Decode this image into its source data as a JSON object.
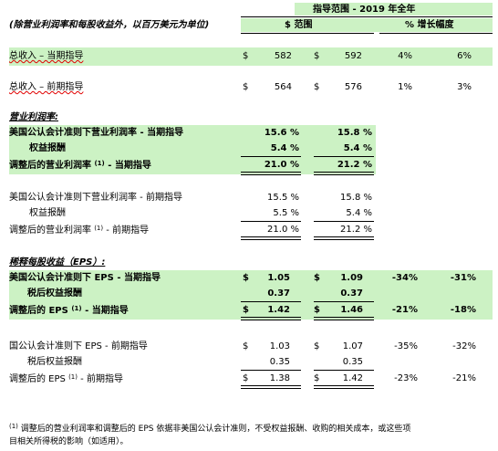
{
  "header": {
    "range_label": "指导范围 - 2019 年全年",
    "note": "(除营业利润率和每股收益外，以百万美元为单位)",
    "col_range": "$ 范围",
    "col_growth": "% 增长幅度"
  },
  "revenue": {
    "current": {
      "label": "总收入 – 当期指导",
      "d1": "$",
      "low": "582",
      "d2": "$",
      "high": "592",
      "g_low": "4%",
      "g_high": "6%"
    },
    "prior": {
      "label": "总收入 – 前期指导",
      "d1": "$",
      "low": "564",
      "d2": "$",
      "high": "576",
      "g_low": "1%",
      "g_high": "3%"
    }
  },
  "op": {
    "title": "营业利润率:",
    "cur_gaap": {
      "label": "美国公认会计准则下营业利润率 - 当期指导",
      "low": "15.6 %",
      "high": "15.8 %"
    },
    "cur_equity": {
      "label": "权益报酬",
      "low": "5.4 %",
      "high": "5.4 %"
    },
    "cur_adj": {
      "label_a": "调整后的营业利润率",
      "sup": "(1)",
      "label_b": "- 当期指导",
      "low": "21.0 %",
      "high": "21.2 %"
    },
    "pri_gaap": {
      "label": "美国公认会计准则下营业利润率 - 前期指导",
      "low": "15.5 %",
      "high": "15.8 %"
    },
    "pri_equity": {
      "label": "权益报酬",
      "low": "5.5 %",
      "high": "5.4 %"
    },
    "pri_adj": {
      "label_a": "调整后的营业利润率",
      "sup": "(1)",
      "label_b": "- 前期指导",
      "low": "21.0 %",
      "high": "21.2 %"
    }
  },
  "eps": {
    "title": "稀释每股收益（EPS）:",
    "cur_gaap": {
      "label": "美国公认会计准则下 EPS - 当期指导",
      "d1": "$",
      "low": "1.05",
      "d2": "$",
      "high": "1.09",
      "g_low": "-34%",
      "g_high": "-31%"
    },
    "cur_equity": {
      "label": "税后权益报酬",
      "low": "0.37",
      "high": "0.37"
    },
    "cur_adj": {
      "label_a": "调整后的 EPS",
      "sup": "(1)",
      "label_b": "- 当期指导",
      "d1": "$",
      "low": "1.42",
      "d2": "$",
      "high": "1.46",
      "g_low": "-21%",
      "g_high": "-18%"
    },
    "pri_gaap": {
      "label": "国公认会计准则下 EPS - 前期指导",
      "d1": "$",
      "low": "1.03",
      "d2": "$",
      "high": "1.07",
      "g_low": "-35%",
      "g_high": "-32%"
    },
    "pri_equity": {
      "label": "税后权益报酬",
      "low": "0.35",
      "high": "0.35"
    },
    "pri_adj": {
      "label_a": "调整后的 EPS",
      "sup": "(1)",
      "label_b": "- 前期指导",
      "d1": "$",
      "low": "1.38",
      "d2": "$",
      "high": "1.42",
      "g_low": "-23%",
      "g_high": "-21%"
    }
  },
  "footnote": {
    "sup": "(1)",
    "line1": "调整后的营业利润率和调整后的 EPS 依据非美国公认会计准则，不受权益报酬、收购的相关成本，或这些项",
    "line2": "目相关所得税的影响（如适用）。"
  },
  "chart_data": {
    "type": "table",
    "title": "指导范围 - 2019 年全年",
    "columns": [
      "",
      "$ 范围 (低)",
      "$ 范围 (高)",
      "% 增长幅度 (低)",
      "% 增长幅度 (高)"
    ],
    "rows": [
      [
        "总收入 – 当期指导",
        "$ 582",
        "$ 592",
        "4%",
        "6%"
      ],
      [
        "总收入 – 前期指导",
        "$ 564",
        "$ 576",
        "1%",
        "3%"
      ],
      [
        "美国公认会计准则下营业利润率 - 当期指导",
        "15.6 %",
        "15.8 %",
        "",
        ""
      ],
      [
        "权益报酬",
        "5.4 %",
        "5.4 %",
        "",
        ""
      ],
      [
        "调整后的营业利润率 (1) - 当期指导",
        "21.0 %",
        "21.2 %",
        "",
        ""
      ],
      [
        "美国公认会计准则下营业利润率 - 前期指导",
        "15.5 %",
        "15.8 %",
        "",
        ""
      ],
      [
        "权益报酬",
        "5.5 %",
        "5.4 %",
        "",
        ""
      ],
      [
        "调整后的营业利润率 (1) - 前期指导",
        "21.0 %",
        "21.2 %",
        "",
        ""
      ],
      [
        "美国公认会计准则下 EPS - 当期指导",
        "$ 1.05",
        "$ 1.09",
        "-34%",
        "-31%"
      ],
      [
        "税后权益报酬",
        "0.37",
        "0.37",
        "",
        ""
      ],
      [
        "调整后的 EPS (1) - 当期指导",
        "$ 1.42",
        "$ 1.46",
        "-21%",
        "-18%"
      ],
      [
        "国公认会计准则下 EPS - 前期指导",
        "$ 1.03",
        "$ 1.07",
        "-35%",
        "-32%"
      ],
      [
        "税后权益报酬",
        "0.35",
        "0.35",
        "",
        ""
      ],
      [
        "调整后的 EPS (1) - 前期指导",
        "$ 1.38",
        "$ 1.42",
        "-23%",
        "-21%"
      ]
    ]
  }
}
